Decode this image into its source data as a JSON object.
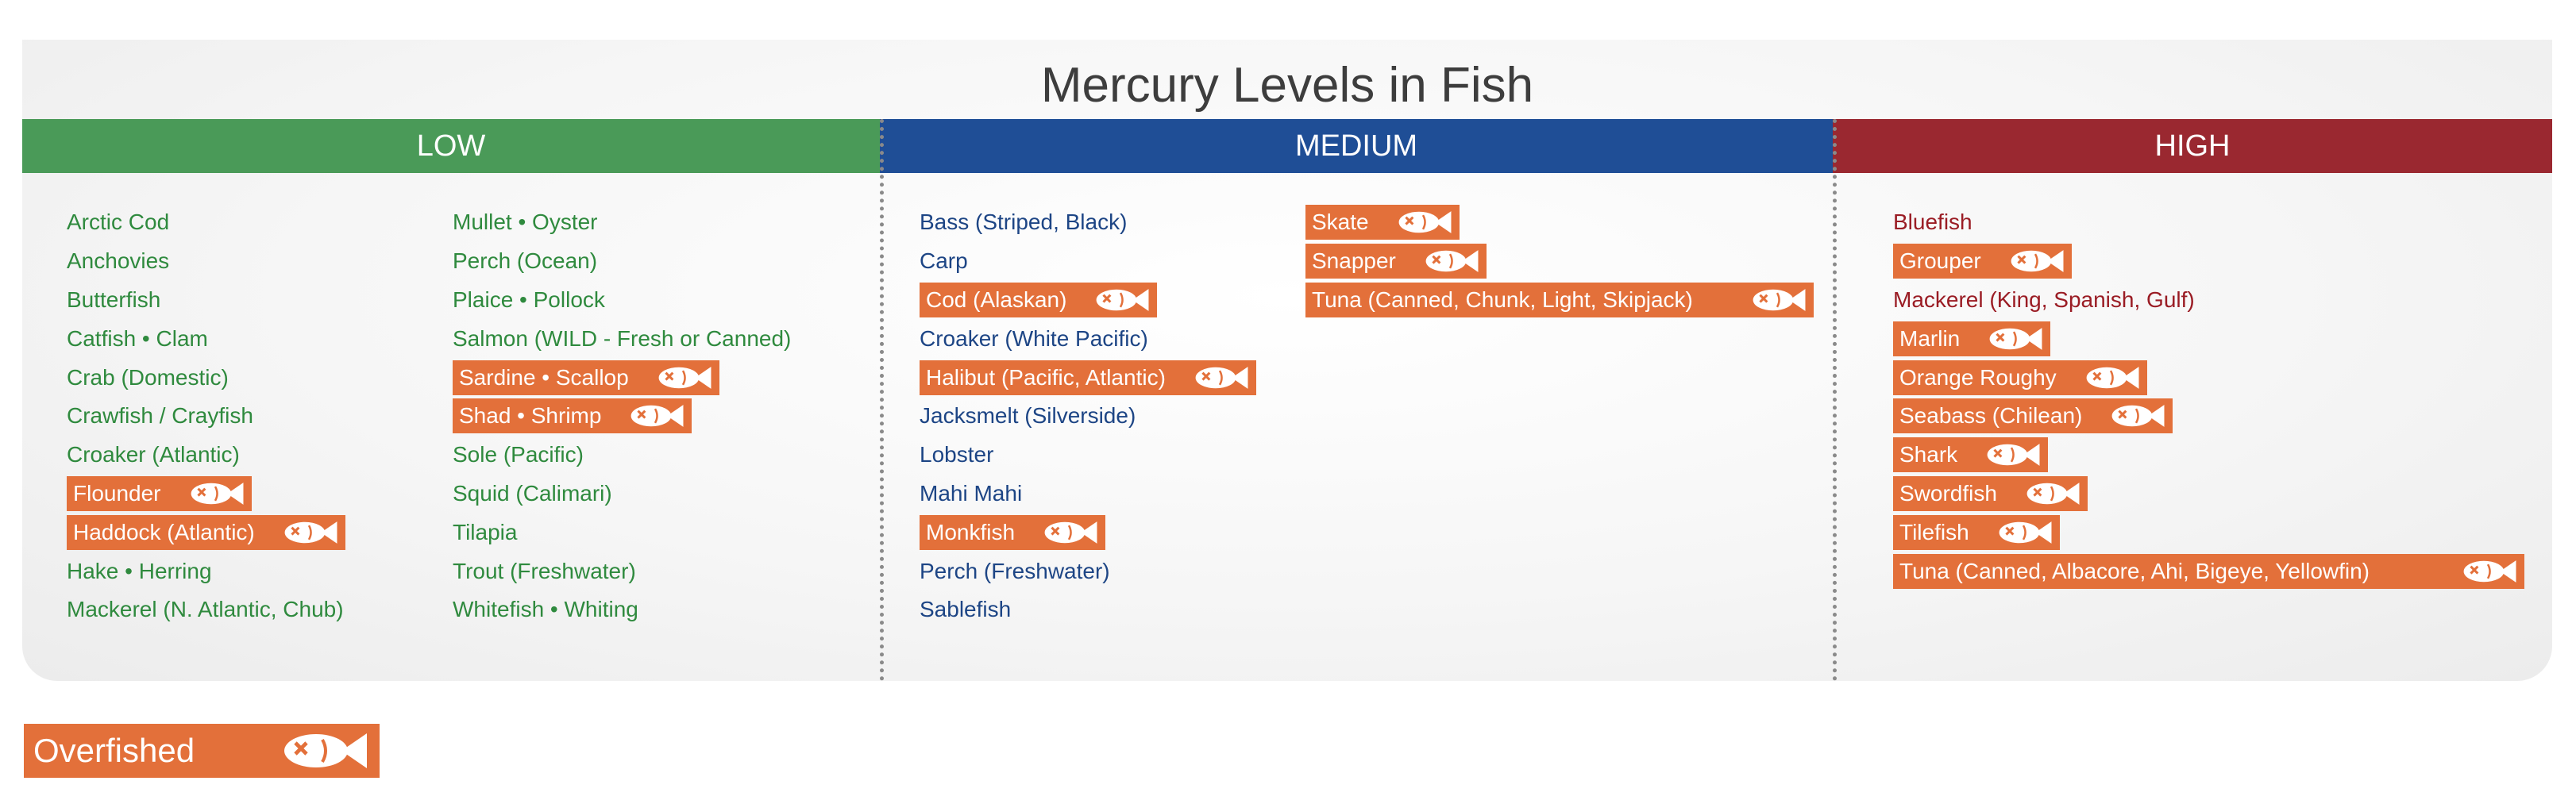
{
  "title": "Mercury Levels in Fish",
  "colors": {
    "low": "#4a9a58",
    "medium": "#1f4e96",
    "high": "#9a2830",
    "overfished": "#e3703a"
  },
  "headers": {
    "low": "LOW",
    "medium": "MEDIUM",
    "high": "HIGH"
  },
  "low": {
    "col1": [
      {
        "name": "Arctic Cod",
        "overfished": false
      },
      {
        "name": "Anchovies",
        "overfished": false
      },
      {
        "name": "Butterfish",
        "overfished": false
      },
      {
        "name": "Catfish • Clam",
        "overfished": false
      },
      {
        "name": "Crab (Domestic)",
        "overfished": false
      },
      {
        "name": "Crawfish / Crayfish",
        "overfished": false
      },
      {
        "name": "Croaker (Atlantic)",
        "overfished": false
      },
      {
        "name": "Flounder",
        "overfished": true
      },
      {
        "name": "Haddock (Atlantic)",
        "overfished": true
      },
      {
        "name": "Hake • Herring",
        "overfished": false
      },
      {
        "name": "Mackerel (N. Atlantic, Chub)",
        "overfished": false
      }
    ],
    "col2": [
      {
        "name": "Mullet • Oyster",
        "overfished": false
      },
      {
        "name": "Perch (Ocean)",
        "overfished": false
      },
      {
        "name": "Plaice • Pollock",
        "overfished": false
      },
      {
        "name": "Salmon (WILD - Fresh or Canned)",
        "overfished": false
      },
      {
        "name": "Sardine • Scallop",
        "overfished": true
      },
      {
        "name": "Shad • Shrimp",
        "overfished": true
      },
      {
        "name": "Sole (Pacific)",
        "overfished": false
      },
      {
        "name": "Squid (Calimari)",
        "overfished": false
      },
      {
        "name": "Tilapia",
        "overfished": false
      },
      {
        "name": "Trout (Freshwater)",
        "overfished": false
      },
      {
        "name": "Whitefish • Whiting",
        "overfished": false
      }
    ]
  },
  "medium": {
    "col1": [
      {
        "name": "Bass (Striped, Black)",
        "overfished": false
      },
      {
        "name": "Carp",
        "overfished": false
      },
      {
        "name": "Cod (Alaskan)",
        "overfished": true
      },
      {
        "name": "Croaker (White Pacific)",
        "overfished": false
      },
      {
        "name": "Halibut (Pacific, Atlantic)",
        "overfished": true
      },
      {
        "name": "Jacksmelt (Silverside)",
        "overfished": false
      },
      {
        "name": "Lobster",
        "overfished": false
      },
      {
        "name": "Mahi Mahi",
        "overfished": false
      },
      {
        "name": "Monkfish",
        "overfished": true
      },
      {
        "name": "Perch (Freshwater)",
        "overfished": false
      },
      {
        "name": "Sablefish",
        "overfished": false
      }
    ],
    "col2": [
      {
        "name": "Skate",
        "overfished": true
      },
      {
        "name": "Snapper",
        "overfished": true
      },
      {
        "name": "Tuna (Canned, Chunk, Light, Skipjack)",
        "overfished": true
      }
    ]
  },
  "high": {
    "col1": [
      {
        "name": "Bluefish",
        "overfished": false
      },
      {
        "name": "Grouper",
        "overfished": true
      },
      {
        "name": "Mackerel (King, Spanish, Gulf)",
        "overfished": false
      },
      {
        "name": "Marlin",
        "overfished": true
      },
      {
        "name": "Orange Roughy",
        "overfished": true
      },
      {
        "name": "Seabass (Chilean)",
        "overfished": true
      },
      {
        "name": "Shark",
        "overfished": true
      },
      {
        "name": "Swordfish",
        "overfished": true
      },
      {
        "name": "Tilefish",
        "overfished": true
      },
      {
        "name": "Tuna (Canned, Albacore, Ahi, Bigeye, Yellowfin)",
        "overfished": true
      }
    ]
  },
  "legend": {
    "label": "Overfished",
    "icon": "dead-fish-icon"
  }
}
